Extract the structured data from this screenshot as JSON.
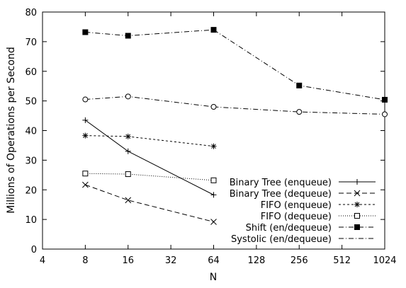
{
  "chart_data": {
    "type": "line",
    "title": "",
    "xlabel": "N",
    "ylabel": "Millions of Operations per Second",
    "xscale": "log2",
    "xlim": [
      4,
      1024
    ],
    "ylim": [
      0,
      80
    ],
    "xticks": [
      "4",
      "8",
      "16",
      "32",
      "64",
      "128",
      "256",
      "512",
      "1024"
    ],
    "yticks": [
      "0",
      "10",
      "20",
      "30",
      "40",
      "50",
      "60",
      "70",
      "80"
    ],
    "grid": false,
    "legend_position": "bottom-right",
    "series": [
      {
        "name": "Binary Tree (enqueue)",
        "marker": "plus",
        "dash": "solid",
        "marker_in_legend": true,
        "points": [
          [
            8,
            43.5
          ],
          [
            16,
            33
          ],
          [
            64,
            18.3
          ]
        ]
      },
      {
        "name": "Binary Tree (dequeue)",
        "marker": "cross",
        "dash": "longdash",
        "marker_in_legend": true,
        "points": [
          [
            8,
            21.7
          ],
          [
            16,
            16.5
          ],
          [
            64,
            9.2
          ]
        ]
      },
      {
        "name": "FIFO (enqueue)",
        "marker": "star",
        "dash": "shortdash",
        "marker_in_legend": true,
        "points": [
          [
            8,
            38.3
          ],
          [
            16,
            38
          ],
          [
            64,
            34.7
          ]
        ]
      },
      {
        "name": "FIFO (dequeue)",
        "marker": "open-square",
        "dash": "dotted",
        "marker_in_legend": true,
        "points": [
          [
            8,
            25.5
          ],
          [
            16,
            25.3
          ],
          [
            64,
            23.2
          ]
        ]
      },
      {
        "name": "Shift (en/dequeue)",
        "marker": "filled-square",
        "dash": "dashdot",
        "marker_in_legend": true,
        "points": [
          [
            8,
            73.2
          ],
          [
            16,
            72
          ],
          [
            64,
            74
          ],
          [
            256,
            55.2
          ],
          [
            1024,
            50.4
          ]
        ]
      },
      {
        "name": "Systolic (en/dequeue)",
        "marker": "open-circle",
        "dash": "dashdot",
        "marker_in_legend": false,
        "points": [
          [
            8,
            50.5
          ],
          [
            16,
            51.5
          ],
          [
            64,
            48
          ],
          [
            256,
            46.3
          ],
          [
            1024,
            45.5
          ]
        ]
      }
    ]
  }
}
